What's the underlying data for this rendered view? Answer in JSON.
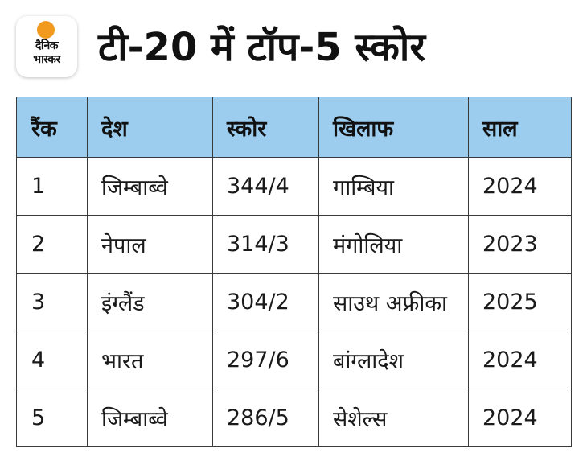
{
  "logo": {
    "line1": "दैनिक",
    "line2": "भास्कर"
  },
  "title": "टी-20 में टॉप-5 स्कोर",
  "colors": {
    "header_bg": "#9ccdef",
    "border": "#3a3a3a",
    "logo_sun": "#f29a1f"
  },
  "chart_data": {
    "type": "table",
    "title": "टी-20 में टॉप-5 स्कोर",
    "columns": [
      "रैंक",
      "देश",
      "स्कोर",
      "खिलाफ",
      "साल"
    ],
    "rows": [
      [
        "1",
        "जिम्बाब्वे",
        "344/4",
        "गाम्बिया",
        "2024"
      ],
      [
        "2",
        "नेपाल",
        "314/3",
        "मंगोलिया",
        "2023"
      ],
      [
        "3",
        "इंग्लैंड",
        "304/2",
        "साउथ अफ्रीका",
        "2025"
      ],
      [
        "4",
        "भारत",
        "297/6",
        "बांग्लादेश",
        "2024"
      ],
      [
        "5",
        "जिम्बाब्वे",
        "286/5",
        "सेशेल्स",
        "2024"
      ]
    ]
  }
}
